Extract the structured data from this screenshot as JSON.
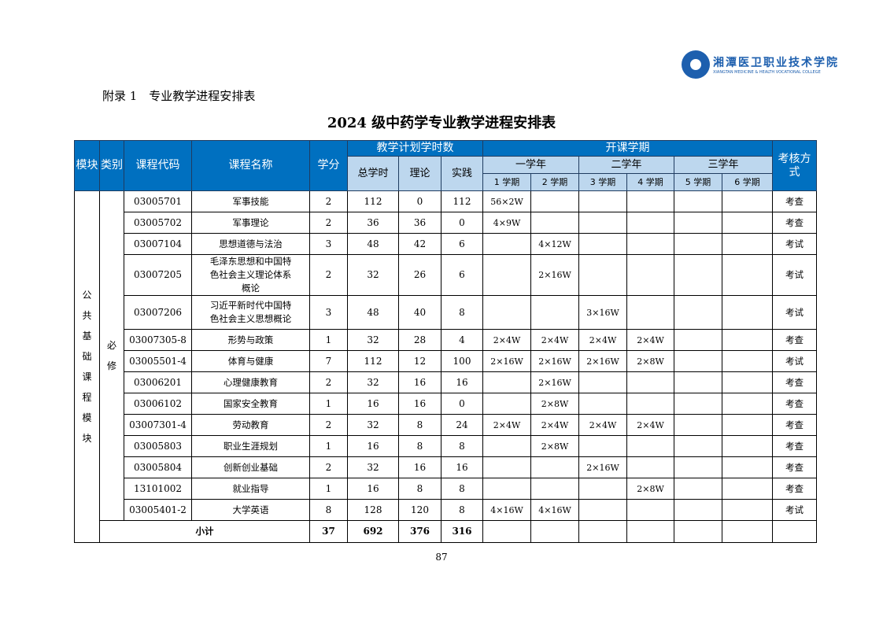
{
  "logo": {
    "name_cn": "湘潭医卫职业技术学院",
    "name_en": "XIANGTAN MEDICINE & HEALTH VOCATIONAL COLLEGE",
    "color": "#1d5fae"
  },
  "appendix": "附录 1　专业教学进程安排表",
  "title": "2024 级中药学专业教学进程安排表",
  "colors": {
    "header_dark": "#0070c0",
    "header_light": "#bdd7ee"
  },
  "header": {
    "module": "模块",
    "category": "类别",
    "code": "课程代码",
    "name": "课程名称",
    "credit": "学分",
    "hours_group": "教学计划学时数",
    "total": "总学时",
    "theory": "理论",
    "practice": "实践",
    "semester_group": "开课学期",
    "years": [
      "一学年",
      "二学年",
      "三学年"
    ],
    "semesters": [
      "1 学期",
      "2 学期",
      "3 学期",
      "4 学期",
      "5 学期",
      "6 学期"
    ],
    "assessment": "考核方式"
  },
  "module_label": "公共基础课程模块",
  "category_label": "必修",
  "rows": [
    {
      "code": "03005701",
      "name": "军事技能",
      "credit": "2",
      "total": "112",
      "theory": "0",
      "practice": "112",
      "s": [
        "56×2W",
        "",
        "",
        "",
        "",
        ""
      ],
      "assess": "考查"
    },
    {
      "code": "03005702",
      "name": "军事理论",
      "credit": "2",
      "total": "36",
      "theory": "36",
      "practice": "0",
      "s": [
        "4×9W",
        "",
        "",
        "",
        "",
        ""
      ],
      "assess": "考查"
    },
    {
      "code": "03007104",
      "name": "思想道德与法治",
      "credit": "3",
      "total": "48",
      "theory": "42",
      "practice": "6",
      "s": [
        "",
        "4×12W",
        "",
        "",
        "",
        ""
      ],
      "assess": "考试"
    },
    {
      "code": "03007205",
      "name": "毛泽东思想和中国特色社会主义理论体系概论",
      "credit": "2",
      "total": "32",
      "theory": "26",
      "practice": "6",
      "s": [
        "",
        "2×16W",
        "",
        "",
        "",
        ""
      ],
      "assess": "考试"
    },
    {
      "code": "03007206",
      "name": "习近平新时代中国特色社会主义思想概论",
      "credit": "3",
      "total": "48",
      "theory": "40",
      "practice": "8",
      "s": [
        "",
        "",
        "3×16W",
        "",
        "",
        ""
      ],
      "assess": "考试"
    },
    {
      "code": "03007305-8",
      "name": "形势与政策",
      "credit": "1",
      "total": "32",
      "theory": "28",
      "practice": "4",
      "s": [
        "2×4W",
        "2×4W",
        "2×4W",
        "2×4W",
        "",
        ""
      ],
      "assess": "考查"
    },
    {
      "code": "03005501-4",
      "name": "体育与健康",
      "credit": "7",
      "total": "112",
      "theory": "12",
      "practice": "100",
      "s": [
        "2×16W",
        "2×16W",
        "2×16W",
        "2×8W",
        "",
        ""
      ],
      "assess": "考试"
    },
    {
      "code": "03006201",
      "name": "心理健康教育",
      "credit": "2",
      "total": "32",
      "theory": "16",
      "practice": "16",
      "s": [
        "",
        "2×16W",
        "",
        "",
        "",
        ""
      ],
      "assess": "考查"
    },
    {
      "code": "03006102",
      "name": "国家安全教育",
      "credit": "1",
      "total": "16",
      "theory": "16",
      "practice": "0",
      "s": [
        "",
        "2×8W",
        "",
        "",
        "",
        ""
      ],
      "assess": "考查"
    },
    {
      "code": "03007301-4",
      "name": "劳动教育",
      "credit": "2",
      "total": "32",
      "theory": "8",
      "practice": "24",
      "s": [
        "2×4W",
        "2×4W",
        "2×4W",
        "2×4W",
        "",
        ""
      ],
      "assess": "考查"
    },
    {
      "code": "03005803",
      "name": "职业生涯规划",
      "credit": "1",
      "total": "16",
      "theory": "8",
      "practice": "8",
      "s": [
        "",
        "2×8W",
        "",
        "",
        "",
        ""
      ],
      "assess": "考查"
    },
    {
      "code": "03005804",
      "name": "创新创业基础",
      "credit": "2",
      "total": "32",
      "theory": "16",
      "practice": "16",
      "s": [
        "",
        "",
        "2×16W",
        "",
        "",
        ""
      ],
      "assess": "考查"
    },
    {
      "code": "13101002",
      "name": "就业指导",
      "credit": "1",
      "total": "16",
      "theory": "8",
      "practice": "8",
      "s": [
        "",
        "",
        "",
        "2×8W",
        "",
        ""
      ],
      "assess": "考查"
    },
    {
      "code": "03005401-2",
      "name": "大学英语",
      "credit": "8",
      "total": "128",
      "theory": "120",
      "practice": "8",
      "s": [
        "4×16W",
        "4×16W",
        "",
        "",
        "",
        ""
      ],
      "assess": "考试"
    }
  ],
  "subtotal": {
    "label": "小计",
    "credit": "37",
    "total": "692",
    "theory": "376",
    "practice": "316"
  },
  "page_number": "87"
}
